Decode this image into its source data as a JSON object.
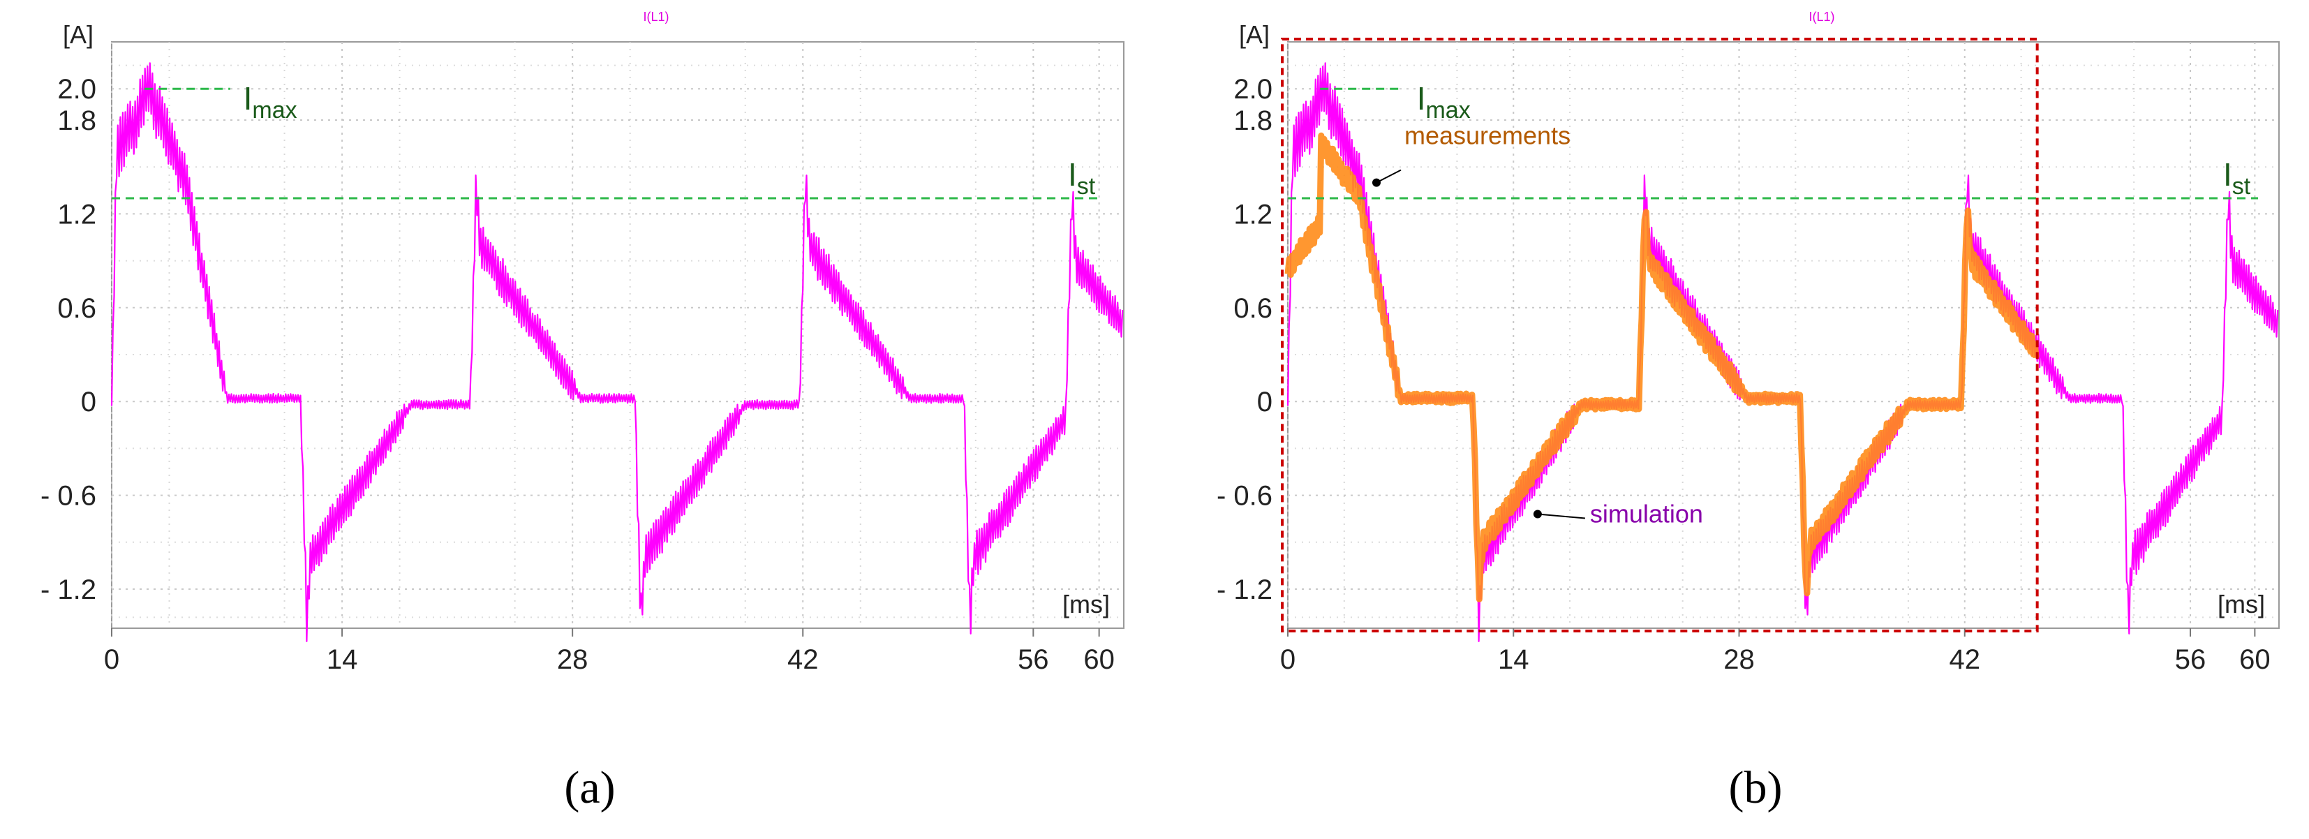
{
  "colors": {
    "simulation": "#ff00ff",
    "measurement": "#ff8c1a",
    "threshold": "#2db84a",
    "highlight_box": "#cc0000",
    "measurement_label": "#b35a00",
    "simulation_label": "#8800aa"
  },
  "chart_data": [
    {
      "type": "line",
      "panel_label": "(a)",
      "title": "I(L1)",
      "xlabel": "[ms]",
      "ylabel": "[A]",
      "xlim": [
        0,
        61.5
      ],
      "ylim": [
        -1.45,
        2.3
      ],
      "x_ticks": [
        0,
        14,
        28,
        42,
        56,
        60
      ],
      "y_ticks": [
        {
          "value": 2.0,
          "label": "2.0"
        },
        {
          "value": 1.8,
          "label": "1.8"
        },
        {
          "value": 1.2,
          "label": "1.2"
        },
        {
          "value": 0.6,
          "label": "0.6"
        },
        {
          "value": 0,
          "label": "0"
        },
        {
          "value": -0.6,
          "label": "- 0.6"
        },
        {
          "value": -1.2,
          "label": "- 1.2"
        }
      ],
      "annotations": [
        {
          "main": "I",
          "sub": "max",
          "value": 2.0
        },
        {
          "main": "I",
          "sub": "st",
          "value": 1.3
        }
      ],
      "series": [
        {
          "name": "simulation",
          "kind": "simulation",
          "x_range": [
            0,
            61.5
          ]
        }
      ]
    },
    {
      "type": "line",
      "panel_label": "(b)",
      "title": "I(L1)",
      "xlabel": "[ms]",
      "ylabel": "[A]",
      "xlim": [
        0,
        61.5
      ],
      "ylim": [
        -1.45,
        2.3
      ],
      "x_ticks": [
        0,
        14,
        28,
        42,
        56,
        60
      ],
      "y_ticks": [
        {
          "value": 2.0,
          "label": "2.0"
        },
        {
          "value": 1.8,
          "label": "1.8"
        },
        {
          "value": 1.2,
          "label": "1.2"
        },
        {
          "value": 0.6,
          "label": "0.6"
        },
        {
          "value": 0,
          "label": "0"
        },
        {
          "value": -0.6,
          "label": "- 0.6"
        },
        {
          "value": -1.2,
          "label": "- 1.2"
        }
      ],
      "annotations": [
        {
          "main": "I",
          "sub": "max",
          "value": 2.0
        },
        {
          "main": "I",
          "sub": "st",
          "value": 1.3
        }
      ],
      "callouts": [
        {
          "text": "measurements",
          "series": "measurements",
          "point_x": 5.5,
          "point_y": 1.4
        },
        {
          "text": "simulation",
          "series": "simulation",
          "point_x": 15.5,
          "point_y": -0.72
        }
      ],
      "highlight_box": {
        "x_range": [
          0,
          46.5
        ],
        "y_range": [
          -1.45,
          2.3
        ]
      },
      "series": [
        {
          "name": "simulation",
          "kind": "simulation",
          "x_range": [
            0,
            61.5
          ]
        },
        {
          "name": "measurements",
          "kind": "measurement",
          "x_range": [
            0,
            46.5
          ]
        }
      ]
    }
  ]
}
